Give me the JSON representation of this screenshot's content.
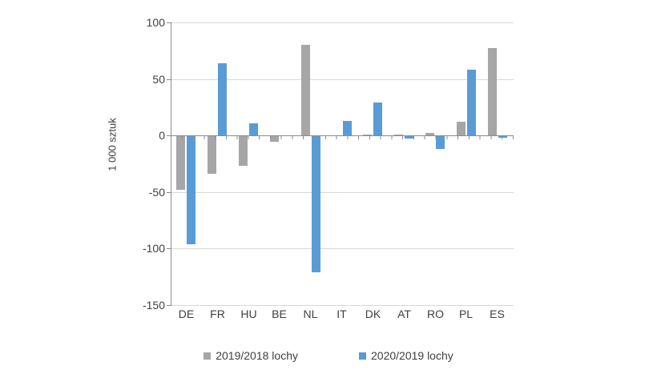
{
  "chart_data": {
    "type": "bar",
    "categories": [
      "DE",
      "FR",
      "HU",
      "BE",
      "NL",
      "IT",
      "DK",
      "AT",
      "RO",
      "PL",
      "ES"
    ],
    "series": [
      {
        "name": "2019/2018 lochy",
        "color": "#a6a6a6",
        "values": [
          -48,
          -34,
          -27,
          -6,
          80,
          0,
          1,
          1,
          2,
          12,
          77
        ]
      },
      {
        "name": "2020/2019 lochy",
        "color": "#5b9bd5",
        "values": [
          -96,
          64,
          11,
          0,
          -121,
          13,
          29,
          -3,
          -12,
          58,
          -2
        ]
      }
    ],
    "title": "",
    "xlabel": "",
    "ylabel": "1 000 sztuk",
    "ylim": [
      -150,
      100
    ],
    "ytick_step": 50,
    "grid": true,
    "legend_position": "bottom"
  },
  "colors": {
    "background": "#ffffff",
    "gridline": "#d9d9d9",
    "axis": "#8c8c8c",
    "text": "#404040",
    "series_gray": "#a6a6a6",
    "series_blue": "#5b9bd5"
  }
}
